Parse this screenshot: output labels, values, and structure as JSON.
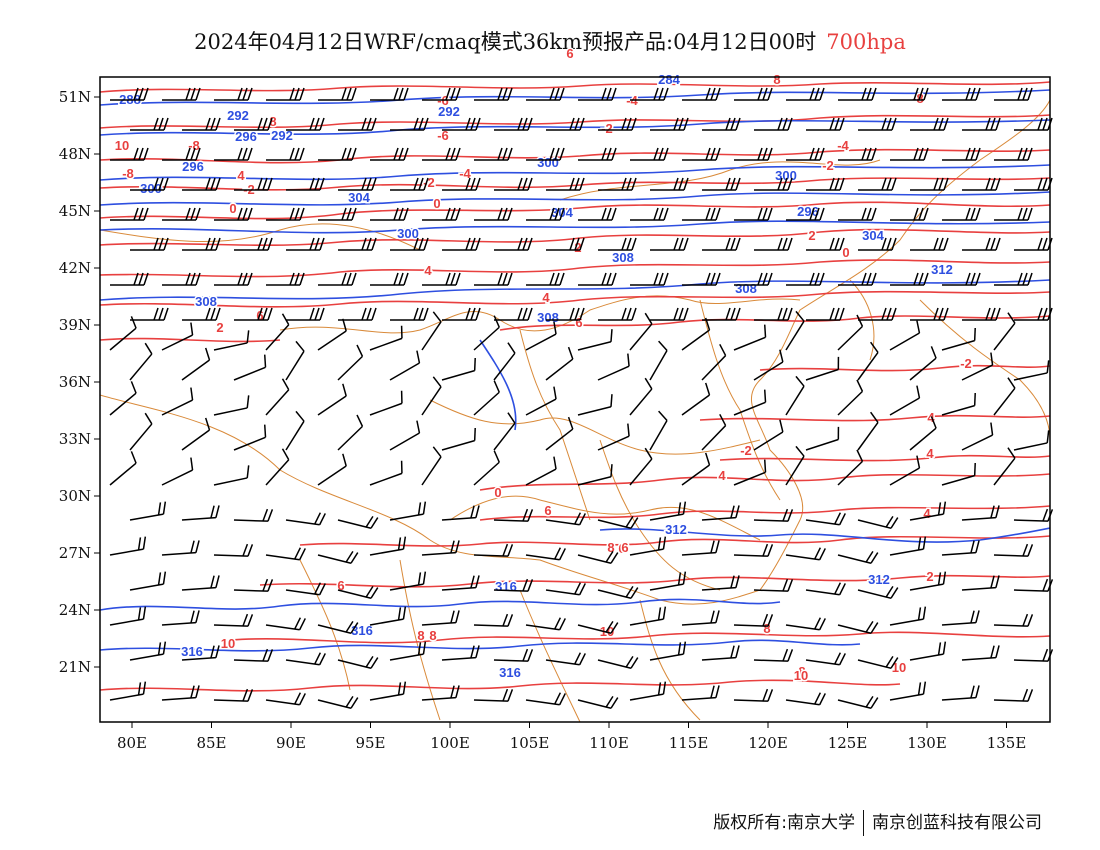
{
  "title": {
    "main": "2024年04月12日WRF/cmaq模式36km预报产品:04月12日00时",
    "level": "700hpa"
  },
  "colors": {
    "temperature": "#e8403f",
    "geopotential": "#2e4fe0",
    "border": "#d98a3a",
    "wind": "#000000",
    "frame": "#000000"
  },
  "axes": {
    "lon_ticks": [
      "80E",
      "85E",
      "90E",
      "95E",
      "100E",
      "105E",
      "110E",
      "115E",
      "120E",
      "125E",
      "130E",
      "135E"
    ],
    "lat_ticks": [
      "51N",
      "48N",
      "45N",
      "42N",
      "39N",
      "36N",
      "33N",
      "30N",
      "27N",
      "24N",
      "21N"
    ]
  },
  "contour_labels": {
    "temperature": [
      "6",
      "8",
      "-8",
      "-6",
      "10",
      "8",
      "-4",
      "-8",
      "-2",
      "0",
      "-6",
      "-2",
      "-4",
      "0",
      "-6",
      "-8",
      "-4",
      "-2",
      "2",
      "4",
      "-2",
      "2",
      "0",
      "4",
      "-2",
      "4",
      "6",
      "4",
      "6",
      "2",
      "4",
      "-2",
      "4",
      "0",
      "6",
      "4",
      "2",
      "6",
      "6",
      "8",
      "8",
      "10",
      "10",
      "10",
      "8",
      "10",
      "8",
      "6",
      "8"
    ],
    "geopotential": [
      "284",
      "288",
      "292",
      "292",
      "296",
      "300",
      "300",
      "296",
      "292",
      "300",
      "304",
      "300",
      "304",
      "296",
      "308",
      "304",
      "308",
      "308",
      "308",
      "312",
      "312",
      "312",
      "316",
      "316",
      "316",
      "316"
    ]
  },
  "footer": {
    "left": "版权所有:南京大学",
    "right": "南京创蓝科技有限公司"
  }
}
